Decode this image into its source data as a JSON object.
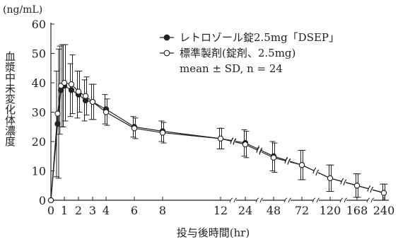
{
  "chart_data": {
    "type": "line",
    "unit_label": "(ng/mL)",
    "ylabel": "血漿中未変化体濃度",
    "xlabel": "投与後時間(hr)",
    "ylim": [
      0,
      60
    ],
    "y_ticks": [
      0,
      10,
      20,
      30,
      40,
      50,
      60
    ],
    "x_ticks": [
      "0",
      "1",
      "2",
      "3",
      "4",
      "6",
      "8",
      "12",
      "24",
      "48",
      "72",
      "120",
      "168",
      "240"
    ],
    "axis_breaks": [
      "12-24",
      "24-48",
      "48-72",
      "72-120",
      "120-168",
      "168-240"
    ],
    "grid": false,
    "legend_position": "top-right",
    "annotation": "mean ± SD, n = 24",
    "series": [
      {
        "name": "レトロゾール錠2.5mg「DSEP」",
        "marker": "filled-circle",
        "points": [
          {
            "x": 0,
            "y": 0,
            "sd": 0
          },
          {
            "x": 0.5,
            "y": 26,
            "sd": 18
          },
          {
            "x": 0.75,
            "y": 37.5,
            "sd": 15
          },
          {
            "x": 1,
            "y": 39,
            "sd": 14
          },
          {
            "x": 1.5,
            "y": 37.5,
            "sd": 9
          },
          {
            "x": 2,
            "y": 36,
            "sd": 8
          },
          {
            "x": 2.5,
            "y": 34,
            "sd": 7
          },
          {
            "x": 3,
            "y": 33.5,
            "sd": 6
          },
          {
            "x": 4,
            "y": 31,
            "sd": 5
          },
          {
            "x": 6,
            "y": 25,
            "sd": 3.5
          },
          {
            "x": 8,
            "y": 23.5,
            "sd": 3.5
          },
          {
            "x": 12,
            "y": 21,
            "sd": 3.5
          },
          {
            "x": 24,
            "y": 19.5,
            "sd": 4.5
          },
          {
            "x": 48,
            "y": 15,
            "sd": 5
          },
          {
            "x": 72,
            "y": 12,
            "sd": 5
          },
          {
            "x": 120,
            "y": 7.5,
            "sd": 4.5
          },
          {
            "x": 168,
            "y": 5,
            "sd": 4
          },
          {
            "x": 240,
            "y": 2.5,
            "sd": 3
          }
        ]
      },
      {
        "name": "標準製剤(錠剤、2.5mg)",
        "marker": "open-circle",
        "points": [
          {
            "x": 0,
            "y": 0,
            "sd": 0
          },
          {
            "x": 0.5,
            "y": 29.5,
            "sd": 22
          },
          {
            "x": 0.75,
            "y": 39,
            "sd": 14
          },
          {
            "x": 1,
            "y": 40,
            "sd": 13
          },
          {
            "x": 1.5,
            "y": 39.5,
            "sd": 10
          },
          {
            "x": 2,
            "y": 37,
            "sd": 7
          },
          {
            "x": 2.5,
            "y": 35.5,
            "sd": 6.5
          },
          {
            "x": 3,
            "y": 33.5,
            "sd": 6
          },
          {
            "x": 4,
            "y": 30,
            "sd": 4.5
          },
          {
            "x": 6,
            "y": 24.5,
            "sd": 3.5
          },
          {
            "x": 8,
            "y": 23,
            "sd": 3.5
          },
          {
            "x": 12,
            "y": 21,
            "sd": 3.5
          },
          {
            "x": 24,
            "y": 19,
            "sd": 4.5
          },
          {
            "x": 48,
            "y": 14.5,
            "sd": 5
          },
          {
            "x": 72,
            "y": 12,
            "sd": 5
          },
          {
            "x": 120,
            "y": 7.5,
            "sd": 4.5
          },
          {
            "x": 168,
            "y": 5,
            "sd": 4
          },
          {
            "x": 240,
            "y": 2.5,
            "sd": 3
          }
        ]
      }
    ]
  }
}
